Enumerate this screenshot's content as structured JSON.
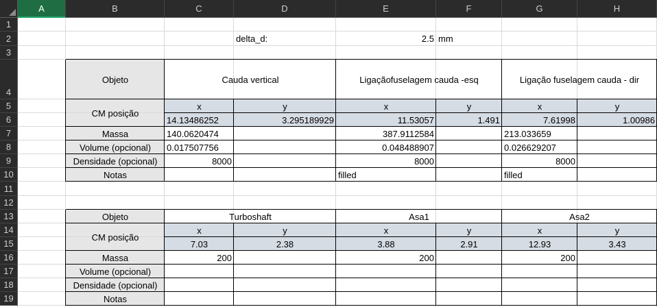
{
  "columns": [
    "A",
    "B",
    "C",
    "D",
    "E",
    "F",
    "G",
    "H"
  ],
  "rows": [
    "1",
    "2",
    "3",
    "4",
    "5",
    "6",
    "7",
    "8",
    "9",
    "10",
    "11",
    "12",
    "13",
    "14",
    "15",
    "16",
    "17",
    "18",
    "19"
  ],
  "delta": {
    "label": "delta_d:",
    "value": "2.5",
    "unit": "mm"
  },
  "table1": {
    "header_label": "Objeto",
    "objects": [
      "Cauda vertical",
      "Ligaçãofuselagem cauda -esq",
      "Ligação fuselagem cauda - dir"
    ],
    "cm_label": "CM posição",
    "axis_x": "x",
    "axis_y": "y",
    "cm_values": [
      "14.13486252",
      "3.295189929",
      "11.53057",
      "1.491",
      "7.61998",
      "1.00986"
    ],
    "massa_label": "Massa",
    "massa": [
      "140.0620474",
      "387.9112584",
      "213.033659"
    ],
    "volume_label": "Volume (opcional)",
    "volume": [
      "0.017507756",
      "0.048488907",
      "0.026629207"
    ],
    "densidade_label": "Densidade (opcional)",
    "densidade": [
      "8000",
      "8000",
      "8000"
    ],
    "notas_label": "Notas",
    "notas": [
      "filled",
      "filled"
    ]
  },
  "table2": {
    "header_label": "Objeto",
    "objects": [
      "Turboshaft",
      "Asa1",
      "Asa2"
    ],
    "cm_label": "CM posição",
    "axis_x": "x",
    "axis_y": "y",
    "cm_values": [
      "7.03",
      "2.38",
      "3.88",
      "2.91",
      "12.93",
      "3.43"
    ],
    "massa_label": "Massa",
    "massa": [
      "200",
      "200",
      "200"
    ],
    "volume_label": "Volume (opcional)",
    "densidade_label": "Densidade (opcional)",
    "notas_label": "Notas"
  },
  "colors": {
    "header_fill": "#e7e6e6",
    "cm_fill": "#d6dce4",
    "selected_header": "#1f6e43"
  }
}
